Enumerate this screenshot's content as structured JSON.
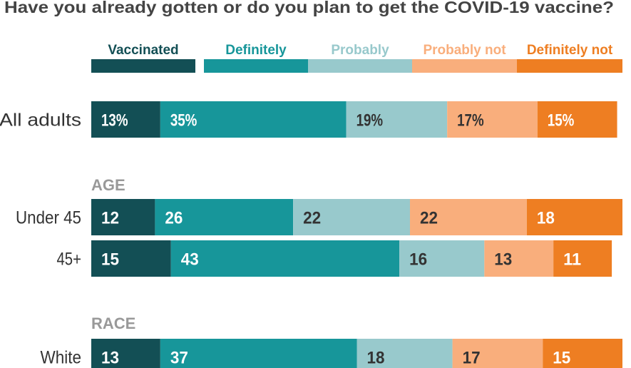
{
  "chart_data": {
    "type": "bar",
    "stacked": true,
    "orientation": "horizontal",
    "title": "Have you already gotten or do you plan to get the COVID-19 vaccine?",
    "legend_position": "top",
    "series": [
      {
        "name": "Vaccinated",
        "color": "#134f55",
        "label_color": "#ffffff"
      },
      {
        "name": "Definitely",
        "color": "#17969a",
        "label_color": "#ffffff"
      },
      {
        "name": "Probably",
        "color": "#98c9cc",
        "label_color": "#333333"
      },
      {
        "name": "Probably not",
        "color": "#f9ae7c",
        "label_color": "#333333"
      },
      {
        "name": "Definitely not",
        "color": "#ee7e22",
        "label_color": "#ffffff"
      }
    ],
    "legend_text_colors": [
      "#134f55",
      "#17969a",
      "#98c9cc",
      "#f9ae7c",
      "#ee7e22"
    ],
    "groups": [
      {
        "heading": "",
        "rows": [
          {
            "label": "All adults",
            "values": [
              13,
              35,
              19,
              17,
              15
            ],
            "value_labels": [
              "13%",
              "35%",
              "19%",
              "17%",
              "15%"
            ]
          }
        ]
      },
      {
        "heading": "AGE",
        "rows": [
          {
            "label": "Under 45",
            "values": [
              12,
              26,
              22,
              22,
              18
            ],
            "value_labels": [
              "12",
              "26",
              "22",
              "22",
              "18"
            ]
          },
          {
            "label": "45+",
            "values": [
              15,
              43,
              16,
              13,
              11
            ],
            "value_labels": [
              "15",
              "43",
              "16",
              "13",
              "11"
            ]
          }
        ]
      },
      {
        "heading": "RACE",
        "rows": [
          {
            "label": "White",
            "values": [
              13,
              37,
              18,
              17,
              15
            ],
            "value_labels": [
              "13",
              "37",
              "18",
              "17",
              "15"
            ]
          }
        ]
      }
    ]
  }
}
